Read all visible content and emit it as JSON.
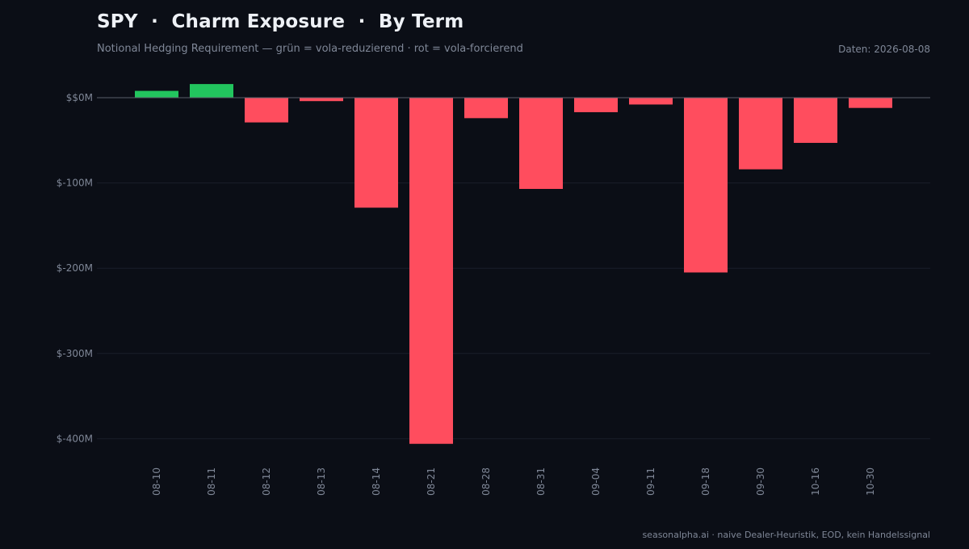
{
  "header": {
    "title": "SPY  ·  Charm Exposure  ·  By Term",
    "subtitle": "Notional Hedging Requirement — grün = vola-reduzierend · rot = vola-forcierend",
    "date": "Daten: 2026-08-08"
  },
  "footer": {
    "text": "seasonalpha.ai · naive Dealer-Heuristik, EOD, kein Handelssignal"
  },
  "colors": {
    "background": "#0b0e16",
    "positive": "#22c55e",
    "negative": "#ff4d5e",
    "gridline": "#1b1f2a",
    "zeroline": "#5a5f6a",
    "text_muted": "#7f8797"
  },
  "chart_data": {
    "type": "bar",
    "categories": [
      "08-10",
      "08-11",
      "08-12",
      "08-13",
      "08-14",
      "08-21",
      "08-28",
      "08-31",
      "09-04",
      "09-11",
      "09-18",
      "09-30",
      "10-16",
      "10-30"
    ],
    "values": [
      8,
      16,
      -29,
      -4,
      -129,
      -406,
      -24,
      -107,
      -17,
      -8,
      -205,
      -84,
      -53,
      -12
    ],
    "unit": "$M",
    "ylim": [
      -420,
      15
    ],
    "yticks": [
      0,
      -100,
      -200,
      -300,
      -400
    ],
    "ytick_labels": [
      "$$0M",
      "$-100M",
      "$-200M",
      "$-300M",
      "$-400M"
    ],
    "grid": true,
    "legend": "none"
  }
}
